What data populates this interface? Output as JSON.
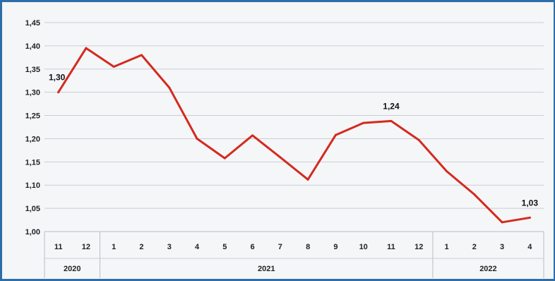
{
  "chart_data": {
    "type": "line",
    "categories": [
      "11",
      "12",
      "1",
      "2",
      "3",
      "4",
      "5",
      "6",
      "7",
      "8",
      "9",
      "10",
      "11",
      "12",
      "1",
      "2",
      "3",
      "4"
    ],
    "groups": [
      {
        "label": "2020",
        "start": 0,
        "end": 1
      },
      {
        "label": "2021",
        "start": 2,
        "end": 13
      },
      {
        "label": "2022",
        "start": 14,
        "end": 17
      }
    ],
    "series": [
      {
        "values": [
          1.3,
          1.395,
          1.355,
          1.38,
          1.31,
          1.2,
          1.158,
          1.207,
          1.16,
          1.112,
          1.208,
          1.234,
          1.238,
          1.197,
          1.13,
          1.08,
          1.02,
          1.03
        ],
        "color": "#d42a1e"
      }
    ],
    "ylim": [
      1.0,
      1.45
    ],
    "yticks": [
      "1,00",
      "1,05",
      "1,10",
      "1,15",
      "1,20",
      "1,25",
      "1,30",
      "1,35",
      "1,40",
      "1,45"
    ],
    "data_labels": [
      {
        "index": 0,
        "text": "1,30"
      },
      {
        "index": 12,
        "text": "1,24"
      },
      {
        "index": 17,
        "text": "1,03"
      }
    ],
    "grid": true,
    "title": "",
    "xlabel": "",
    "ylabel": ""
  }
}
